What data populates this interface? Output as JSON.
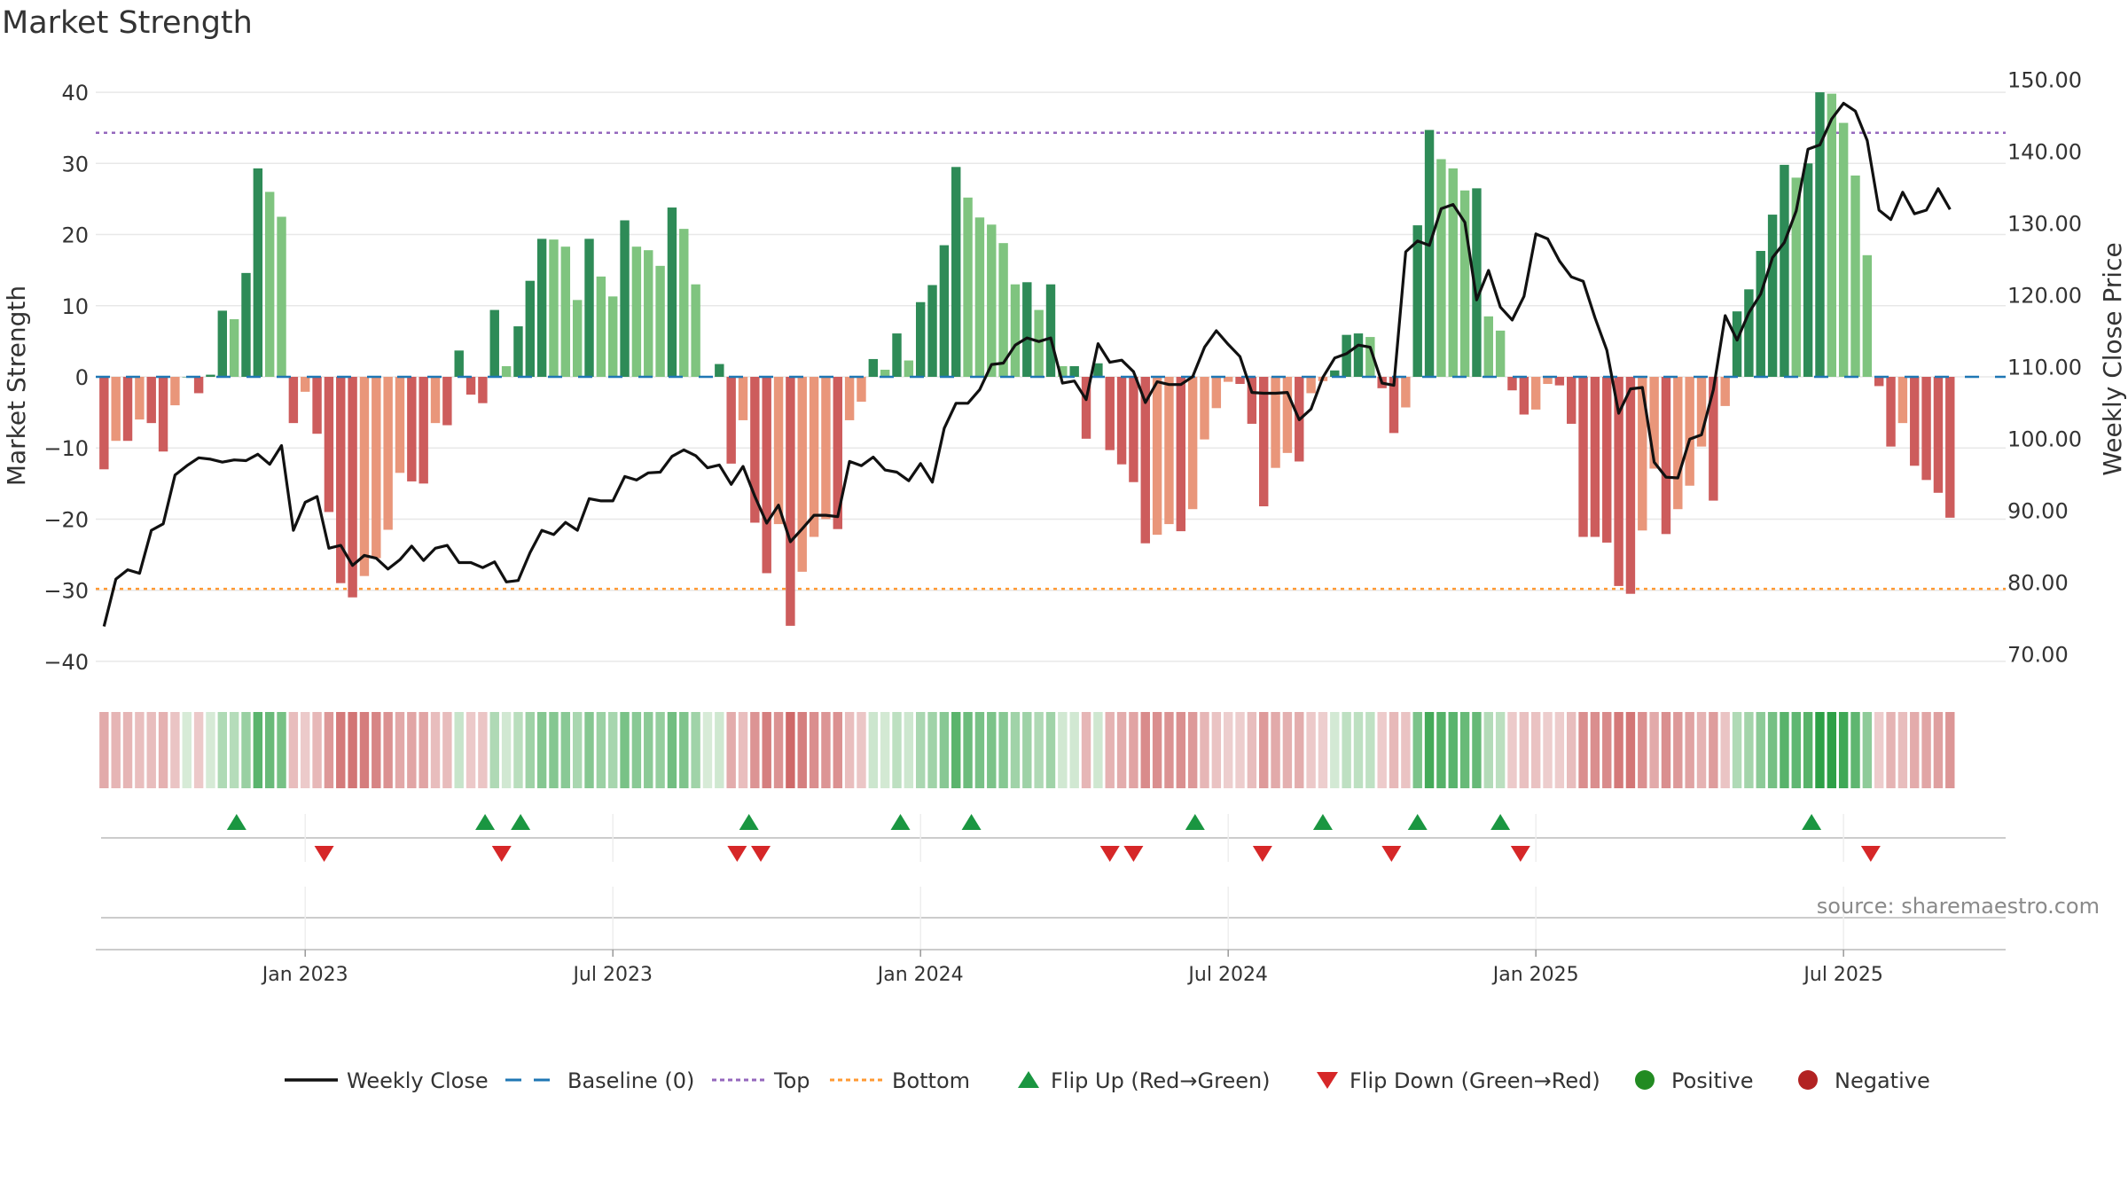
{
  "title": "Market Strength",
  "source": "source: sharemaestro.com",
  "colors": {
    "pos_dark": "#2e8b57",
    "pos_light": "#7fc47f",
    "neg_dark": "#cd5c5c",
    "neg_light": "#e9967a",
    "close": "#111111",
    "baseline": "#1f77b4",
    "top": "#9467bd",
    "bottom": "#ff9933",
    "flip_up": "#1a9641",
    "flip_down": "#d62728",
    "positive": "#228b22",
    "negative": "#b22222",
    "grid": "#e8e8e8"
  },
  "chart_data": {
    "type": "bar",
    "title": "Market Strength",
    "ylabel": "Market Strength",
    "y2label": "Weekly Close Price",
    "ylim": [
      -43,
      43
    ],
    "y2lim": [
      65.96,
      151.2
    ],
    "yticks": [
      40,
      30,
      20,
      10,
      0,
      -10,
      -20,
      -30,
      -40
    ],
    "yticklabels": [
      "40",
      "30",
      "20",
      "10",
      "0",
      "−10",
      "−20",
      "−30",
      "−40"
    ],
    "y2ticks": [
      150,
      140,
      130,
      120,
      110,
      100,
      90,
      80,
      70
    ],
    "y2ticklabels": [
      "150.00",
      "140.00",
      "130.00",
      "120.00",
      "110.00",
      "100.00",
      "90.00",
      "80.00",
      "70.00"
    ],
    "top_line": 34.3,
    "bottom_line": -29.8,
    "x_start_week": -17,
    "x_week_range": [
      -17.7,
      143.7
    ],
    "xticks": [
      {
        "week": 0,
        "label": "Jan 2023"
      },
      {
        "week": 26,
        "label": "Jul 2023"
      },
      {
        "week": 52,
        "label": "Jan 2024"
      },
      {
        "week": 78,
        "label": "Jul 2024"
      },
      {
        "week": 104,
        "label": "Jan 2025"
      },
      {
        "week": 130,
        "label": "Jul 2025"
      }
    ],
    "strength": [
      -13,
      -9,
      -9,
      -6,
      -6.5,
      -10.5,
      -4,
      0,
      -2.3,
      0.3,
      9.3,
      8.1,
      14.6,
      29.3,
      26,
      22.5,
      -6.5,
      -2.1,
      -8,
      -19,
      -29,
      -31,
      -28,
      -25.5,
      -21.5,
      -13.5,
      -14.7,
      -15,
      -6.5,
      -6.8,
      3.7,
      -2.5,
      -3.7,
      9.4,
      1.5,
      7.1,
      13.5,
      19.4,
      19.3,
      18.3,
      10.8,
      19.4,
      14.1,
      11.3,
      22,
      18.3,
      17.8,
      15.6,
      23.8,
      20.8,
      13,
      0,
      1.8,
      -12.2,
      -6.1,
      -20.5,
      -27.6,
      -20.7,
      -35,
      -27.4,
      -22.5,
      -20,
      -21.4,
      -6.1,
      -3.5,
      2.5,
      1,
      6.1,
      2.3,
      10.5,
      12.9,
      18.5,
      29.5,
      25.2,
      22.4,
      21.4,
      18.8,
      13,
      13.3,
      9.4,
      13,
      1.5,
      1.5,
      -8.7,
      1.9,
      -10.3,
      -12.3,
      -14.8,
      -23.4,
      -22.2,
      -20.7,
      -21.7,
      -18.6,
      -8.8,
      -4.4,
      -0.7,
      -1,
      -6.6,
      -18.2,
      -12.8,
      -10.7,
      -11.9,
      -2.3,
      -0.6,
      0.9,
      5.9,
      6.1,
      5.6,
      -1.6,
      -7.9,
      -4.3,
      21.3,
      34.7,
      30.6,
      29.3,
      26.2,
      26.5,
      8.5,
      6.5,
      -1.9,
      -5.3,
      -4.6,
      -1,
      -1.2,
      -6.6,
      -22.5,
      -22.5,
      -23.3,
      -29.4,
      -30.5,
      -21.6,
      -12.9,
      -22.1,
      -18.6,
      -15.3,
      -9.8,
      -17.4,
      -4.1,
      9.2,
      12.3,
      17.7,
      22.8,
      29.8,
      28,
      30,
      40,
      39.8,
      35.7,
      28.3,
      17.1,
      -1.3,
      -9.8,
      -6.5,
      -12.5,
      -14.5,
      -16.3,
      -19.8
    ],
    "close": [
      73.8,
      80.4,
      81.7,
      81.2,
      87.2,
      88.1,
      94.9,
      96.2,
      97.3,
      97.1,
      96.7,
      97,
      96.9,
      97.8,
      96.4,
      99,
      87.2,
      91.1,
      91.9,
      84.7,
      85.1,
      82.3,
      83.7,
      83.3,
      81.8,
      83.1,
      85,
      83,
      84.7,
      85.1,
      82.7,
      82.7,
      82,
      82.8,
      80,
      80.2,
      84.1,
      87.2,
      86.6,
      88.3,
      87.2,
      91.6,
      91.3,
      91.3,
      94.7,
      94.2,
      95.2,
      95.3,
      97.5,
      98.4,
      97.6,
      95.9,
      96.3,
      93.6,
      96.1,
      91.9,
      88.2,
      90.7,
      85.6,
      87.4,
      89.3,
      89.3,
      89.1,
      96.8,
      96.2,
      97.4,
      95.6,
      95.3,
      94.1,
      96.5,
      93.9,
      101.4,
      104.9,
      104.9,
      106.8,
      110.3,
      110.5,
      113,
      114,
      113.5,
      114,
      107.7,
      108,
      105.4,
      113.2,
      110.6,
      110.9,
      109.3,
      105,
      107.9,
      107.5,
      107.5,
      108.6,
      112.7,
      115,
      113.1,
      111.4,
      106.4,
      106.3,
      106.3,
      106.4,
      102.6,
      104.1,
      108.5,
      111.2,
      111.8,
      113,
      112.7,
      107.7,
      107.4,
      126,
      127.5,
      126.9,
      132,
      132.6,
      130.1,
      119.3,
      123.4,
      118.3,
      116.5,
      119.8,
      128.5,
      127.8,
      124.7,
      122.5,
      121.9,
      116.8,
      112.3,
      103.5,
      106.9,
      107.1,
      96.7,
      94.6,
      94.5,
      99.9,
      100.5,
      106.8,
      117.1,
      113.7,
      117.5,
      120.1,
      125.2,
      127.3,
      131.7,
      140.3,
      140.9,
      144.5,
      146.7,
      145.6,
      141.5,
      131.8,
      130.5,
      134.3,
      131.3,
      131.8,
      134.8,
      131.9
    ],
    "flip_up_weeks": [
      -5.8,
      15.2,
      18.2,
      37.5,
      50.3,
      56.3,
      75.2,
      86,
      94,
      101,
      127.3
    ],
    "flip_down_weeks": [
      1.6,
      16.6,
      36.5,
      38.5,
      68,
      70,
      80.9,
      91.8,
      102.7,
      132.3
    ],
    "legend": [
      {
        "label": "Weekly Close",
        "kind": "line"
      },
      {
        "label": "Baseline (0)",
        "kind": "dash"
      },
      {
        "label": "Top",
        "kind": "dot-purple"
      },
      {
        "label": "Bottom",
        "kind": "dot-orange"
      },
      {
        "label": "Flip Up (Red→Green)",
        "kind": "tri-up"
      },
      {
        "label": "Flip Down (Green→Red)",
        "kind": "tri-down"
      },
      {
        "label": "Positive",
        "kind": "circle-green"
      },
      {
        "label": "Negative",
        "kind": "circle-red"
      }
    ]
  }
}
